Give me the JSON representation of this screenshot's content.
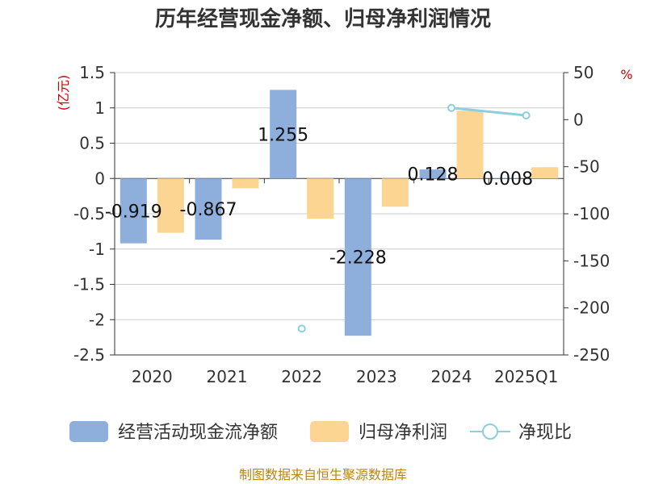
{
  "chart_data": {
    "type": "bar",
    "title": "历年经营现金净额、归母净利润情况",
    "categories": [
      "2020",
      "2021",
      "2022",
      "2023",
      "2024",
      "2025Q1"
    ],
    "series": [
      {
        "name": "经营活动现金流净额",
        "axis": "left",
        "color": "#8eaedb",
        "values": [
          -0.919,
          -0.867,
          1.255,
          -2.228,
          0.128,
          0.008
        ],
        "labels": [
          "-0.919",
          "-0.867",
          "1.255",
          "-2.228",
          "0.128",
          "0.008"
        ]
      },
      {
        "name": "归母净利润",
        "axis": "left",
        "color": "#fdd593",
        "values": [
          -0.77,
          -0.14,
          -0.57,
          -0.4,
          0.96,
          0.16
        ]
      },
      {
        "name": "净现比",
        "axis": "right",
        "type": "line",
        "color": "#8ccfdd",
        "values": [
          null,
          null,
          -222,
          null,
          12.5,
          4.5
        ]
      }
    ],
    "left_axis": {
      "unit": "(亿元)",
      "ylim": [
        -2.5,
        1.5
      ],
      "ticks": [
        1.5,
        1,
        0.5,
        0,
        -0.5,
        -1,
        -1.5,
        -2,
        -2.5
      ],
      "tick_labels": [
        "1.5",
        "1",
        "0.5",
        "0",
        "-0.5",
        "-1",
        "-1.5",
        "-2",
        "-2.5"
      ]
    },
    "right_axis": {
      "unit": "%",
      "ylim": [
        -250,
        50
      ],
      "ticks": [
        50,
        0,
        -50,
        -100,
        -150,
        -200,
        -250
      ],
      "tick_labels": [
        "50",
        "0",
        "-50",
        "-100",
        "-150",
        "-200",
        "-250"
      ]
    },
    "legend_position": "bottom",
    "grid": true
  },
  "source_text": "制图数据来自恒生聚源数据库"
}
